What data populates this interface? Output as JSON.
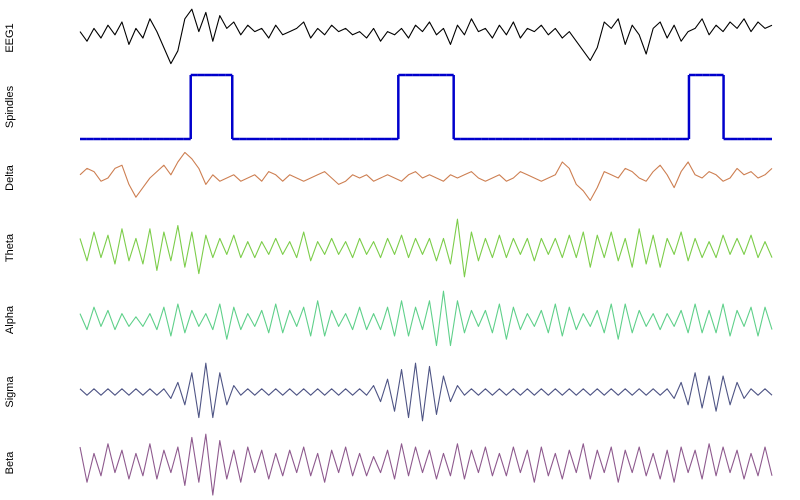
{
  "chart_data": [
    {
      "type": "line",
      "label": "EEG1",
      "color": "#000000",
      "ylim": [
        -10,
        10
      ],
      "values": [
        2,
        -1,
        3,
        0,
        4,
        1,
        5,
        -2,
        3,
        0,
        6,
        2,
        -3,
        -8,
        -4,
        6,
        9,
        2,
        8,
        -1,
        7,
        3,
        5,
        1,
        4,
        2,
        3,
        0,
        4,
        1,
        2,
        3,
        5,
        0,
        3,
        1,
        4,
        2,
        3,
        1,
        2,
        0,
        3,
        -1,
        2,
        1,
        3,
        0,
        4,
        2,
        5,
        1,
        3,
        -2,
        4,
        1,
        6,
        2,
        3,
        0,
        4,
        1,
        5,
        0,
        3,
        2,
        4,
        1,
        3,
        0,
        2,
        -1,
        -4,
        -7,
        -3,
        5,
        3,
        6,
        -2,
        4,
        1,
        -5,
        3,
        5,
        0,
        4,
        -1,
        2,
        3,
        6,
        1,
        4,
        2,
        5,
        3,
        6,
        2,
        5,
        3,
        4
      ]
    },
    {
      "type": "step",
      "label": "Spindles",
      "color": "#0000cc",
      "ylim": [
        0,
        1
      ],
      "values": [
        0,
        0,
        0,
        0,
        0,
        0,
        0,
        0,
        0,
        0,
        0,
        0,
        0,
        0,
        0,
        0,
        1,
        1,
        1,
        1,
        1,
        1,
        0,
        0,
        0,
        0,
        0,
        0,
        0,
        0,
        0,
        0,
        0,
        0,
        0,
        0,
        0,
        0,
        0,
        0,
        0,
        0,
        0,
        0,
        0,
        0,
        1,
        1,
        1,
        1,
        1,
        1,
        1,
        1,
        0,
        0,
        0,
        0,
        0,
        0,
        0,
        0,
        0,
        0,
        0,
        0,
        0,
        0,
        0,
        0,
        0,
        0,
        0,
        0,
        0,
        0,
        0,
        0,
        0,
        0,
        0,
        0,
        0,
        0,
        0,
        0,
        0,
        0,
        1,
        1,
        1,
        1,
        1,
        0,
        0,
        0,
        0,
        0,
        0,
        0
      ]
    },
    {
      "type": "line",
      "label": "Delta",
      "color": "#cd7f52",
      "ylim": [
        -10,
        10
      ],
      "values": [
        1,
        3,
        2,
        -1,
        0,
        3,
        4,
        -2,
        -6,
        -3,
        0,
        2,
        4,
        1,
        5,
        8,
        6,
        3,
        -2,
        1,
        -1,
        0,
        1,
        -1,
        0,
        1,
        -1,
        2,
        1,
        -1,
        1,
        0,
        -1,
        0,
        1,
        2,
        0,
        -2,
        -1,
        1,
        0,
        1,
        -1,
        0,
        1,
        0,
        -1,
        1,
        2,
        0,
        1,
        0,
        -1,
        1,
        0,
        1,
        2,
        0,
        -1,
        0,
        1,
        -1,
        0,
        2,
        1,
        0,
        -1,
        0,
        1,
        5,
        3,
        -2,
        -4,
        -7,
        -3,
        2,
        1,
        0,
        3,
        2,
        0,
        -1,
        2,
        4,
        1,
        -3,
        2,
        5,
        1,
        0,
        2,
        1,
        -1,
        0,
        3,
        1,
        2,
        0,
        1,
        3
      ]
    },
    {
      "type": "line",
      "label": "Theta",
      "color": "#7ccd4a",
      "ylim": [
        -10,
        10
      ],
      "values": [
        3,
        -4,
        5,
        -3,
        4,
        -5,
        6,
        -4,
        3,
        -5,
        6,
        -7,
        5,
        -4,
        7,
        -6,
        5,
        -8,
        4,
        -3,
        3,
        -2,
        4,
        -3,
        2,
        -3,
        2,
        -2,
        3,
        -2,
        2,
        -3,
        5,
        -4,
        2,
        -2,
        3,
        -2,
        2,
        -3,
        3,
        -2,
        2,
        -3,
        3,
        -2,
        4,
        -3,
        3,
        -2,
        3,
        -4,
        3,
        -5,
        9,
        -9,
        5,
        -4,
        3,
        -3,
        4,
        -3,
        3,
        -2,
        3,
        -4,
        3,
        -2,
        3,
        -3,
        4,
        -3,
        5,
        -6,
        4,
        -3,
        5,
        -4,
        3,
        -6,
        6,
        -5,
        4,
        -6,
        3,
        -2,
        5,
        -4,
        3,
        -3,
        2,
        -3,
        4,
        -2,
        3,
        -2,
        4,
        -3,
        2,
        -3
      ]
    },
    {
      "type": "line",
      "label": "Alpha",
      "color": "#5fd08a",
      "ylim": [
        -10,
        10
      ],
      "values": [
        2,
        -3,
        4,
        -2,
        3,
        -3,
        2,
        -2,
        1,
        -2,
        2,
        -3,
        4,
        -5,
        5,
        -4,
        3,
        -2,
        2,
        -3,
        5,
        -6,
        4,
        -3,
        2,
        -2,
        3,
        -4,
        5,
        -4,
        3,
        -2,
        4,
        -5,
        6,
        -5,
        3,
        -2,
        2,
        -3,
        4,
        -3,
        2,
        -3,
        4,
        -5,
        6,
        -5,
        4,
        -3,
        6,
        -8,
        9,
        -8,
        6,
        -4,
        3,
        -2,
        3,
        -4,
        5,
        -6,
        4,
        -3,
        2,
        -2,
        3,
        -4,
        5,
        -5,
        4,
        -3,
        2,
        -2,
        3,
        -4,
        5,
        -6,
        5,
        -4,
        3,
        -2,
        2,
        -3,
        2,
        -2,
        3,
        -4,
        5,
        -4,
        3,
        -4,
        5,
        -5,
        3,
        -2,
        4,
        -5,
        4,
        -3
      ]
    },
    {
      "type": "line",
      "label": "Sigma",
      "color": "#4f5585",
      "ylim": [
        -10,
        10
      ],
      "values": [
        1,
        -1,
        1,
        -1,
        1,
        -1,
        1,
        -1,
        1,
        -1,
        1,
        -1,
        1,
        -2,
        3,
        -4,
        6,
        -8,
        9,
        -8,
        6,
        -4,
        2,
        -1,
        1,
        -1,
        1,
        -1,
        1,
        -1,
        1,
        -1,
        1,
        -1,
        1,
        -1,
        1,
        -1,
        1,
        -1,
        1,
        -1,
        2,
        -3,
        4,
        -6,
        7,
        -8,
        9,
        -9,
        8,
        -7,
        5,
        -3,
        2,
        -1,
        1,
        -1,
        1,
        -1,
        1,
        -1,
        1,
        -1,
        1,
        -1,
        1,
        -1,
        1,
        -1,
        1,
        -1,
        1,
        -1,
        1,
        -1,
        1,
        -1,
        1,
        -1,
        1,
        -1,
        1,
        -1,
        1,
        -2,
        3,
        -4,
        6,
        -5,
        5,
        -6,
        5,
        -4,
        3,
        -2,
        1,
        -1,
        1,
        -1
      ]
    },
    {
      "type": "line",
      "label": "Beta",
      "color": "#8e5a8e",
      "ylim": [
        -10,
        10
      ],
      "values": [
        5,
        -6,
        3,
        -4,
        6,
        -3,
        4,
        -5,
        3,
        -4,
        6,
        -5,
        4,
        -3,
        5,
        -7,
        8,
        -6,
        9,
        -10,
        7,
        -5,
        4,
        -6,
        5,
        -3,
        4,
        -5,
        3,
        -4,
        4,
        -3,
        5,
        -4,
        3,
        -6,
        4,
        -3,
        5,
        -4,
        3,
        -4,
        2,
        -3,
        4,
        -5,
        6,
        -4,
        5,
        -3,
        4,
        -5,
        3,
        -4,
        6,
        -5,
        4,
        -3,
        5,
        -4,
        3,
        -4,
        5,
        -3,
        4,
        -6,
        5,
        -4,
        3,
        -5,
        4,
        -3,
        6,
        -5,
        4,
        -3,
        5,
        -6,
        4,
        -3,
        5,
        -4,
        3,
        -5,
        4,
        -6,
        5,
        -3,
        4,
        -5,
        6,
        -4,
        5,
        -3,
        4,
        -5,
        3,
        -4,
        5,
        -4
      ]
    }
  ]
}
